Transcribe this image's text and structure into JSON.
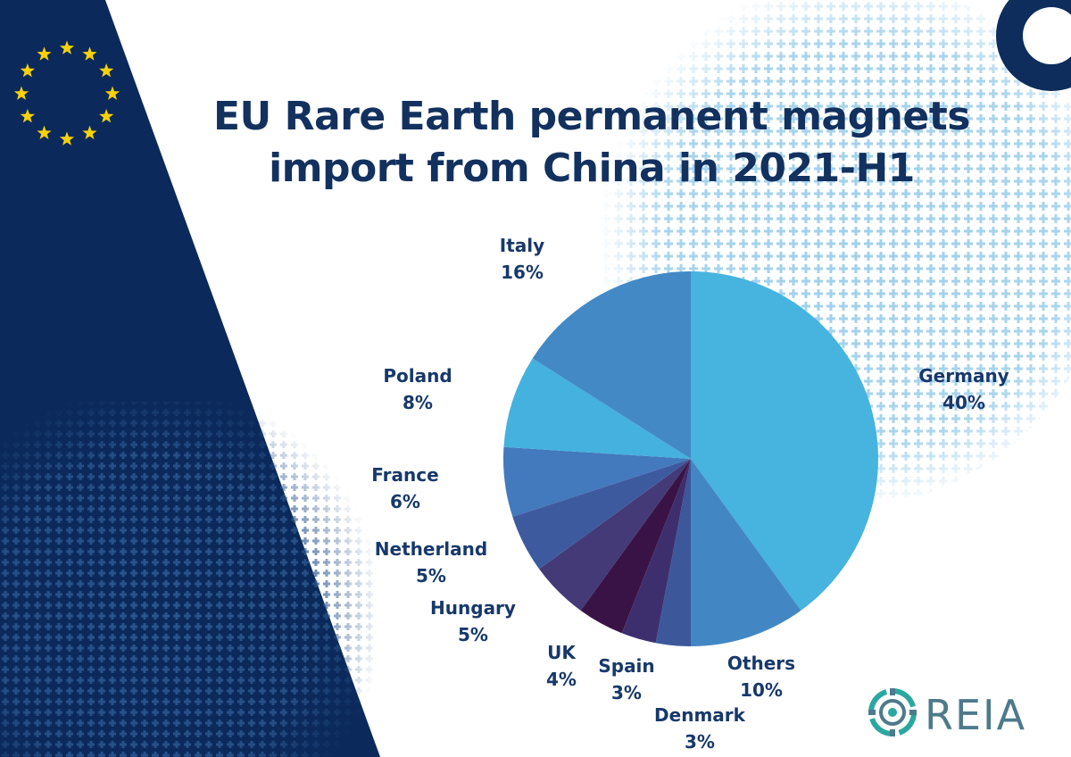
{
  "title_lines": [
    "EU Rare Earth permanent magnets",
    "import from China in 2021-H1"
  ],
  "brand": {
    "text": "REIA"
  },
  "colors": {
    "navy": "#0b2a5b",
    "title": "#12315f",
    "label": "#17386b",
    "star": "#f8d10b",
    "pattern": "#9fd0ec",
    "accent_ring": "#0e2d5c",
    "brand_teal": "#2aa7a0"
  },
  "chart_data": {
    "type": "pie",
    "title": "EU Rare Earth permanent magnets import from China in 2021-H1",
    "unit": "%",
    "slices": [
      {
        "label": "Germany",
        "value": 40,
        "display": "40%",
        "color": "#47b3df"
      },
      {
        "label": "Others",
        "value": 10,
        "display": "10%",
        "color": "#4287c4"
      },
      {
        "label": "Denmark",
        "value": 3,
        "display": "3%",
        "color": "#3d579b"
      },
      {
        "label": "Spain",
        "value": 3,
        "display": "3%",
        "color": "#3d2f6e"
      },
      {
        "label": "UK",
        "value": 4,
        "display": "4%",
        "color": "#3a1346"
      },
      {
        "label": "Hungary",
        "value": 5,
        "display": "5%",
        "color": "#433a77"
      },
      {
        "label": "Netherland",
        "value": 5,
        "display": "5%",
        "color": "#3e5a9f"
      },
      {
        "label": "France",
        "value": 6,
        "display": "6%",
        "color": "#4379bd"
      },
      {
        "label": "Poland",
        "value": 8,
        "display": "8%",
        "color": "#45b1de"
      },
      {
        "label": "Italy",
        "value": 16,
        "display": "16%",
        "color": "#4289c6"
      }
    ]
  }
}
